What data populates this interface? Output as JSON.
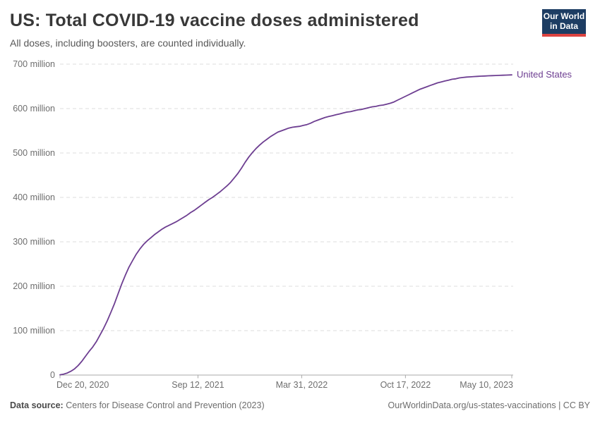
{
  "header": {
    "title": "US: Total COVID-19 vaccine doses administered",
    "subtitle": "All doses, including boosters, are counted individually.",
    "logo": {
      "line1": "Our World",
      "line2": "in Data",
      "bg": "#1d3d63",
      "accent": "#dc4340"
    }
  },
  "footer": {
    "source_label": "Data source:",
    "source_text": "Centers for Disease Control and Prevention (2023)",
    "link_text": "OurWorldinData.org/us-states-vaccinations | CC BY"
  },
  "chart_data": {
    "type": "line",
    "title": "US: Total COVID-19 vaccine doses administered",
    "xlabel": "",
    "ylabel": "",
    "unit": "doses (millions)",
    "grid": "horizontal-dashed",
    "legend_position": "end-of-line",
    "ylim": [
      0,
      700
    ],
    "x_range": [
      "2020-12-20",
      "2023-05-10"
    ],
    "y_ticks": [
      {
        "value": 0,
        "label": "0"
      },
      {
        "value": 100,
        "label": "100 million"
      },
      {
        "value": 200,
        "label": "200 million"
      },
      {
        "value": 300,
        "label": "300 million"
      },
      {
        "value": 400,
        "label": "400 million"
      },
      {
        "value": 500,
        "label": "500 million"
      },
      {
        "value": 600,
        "label": "600 million"
      },
      {
        "value": 700,
        "label": "700 million"
      }
    ],
    "x_ticks": [
      {
        "date": "2020-12-20",
        "label": "Dec 20, 2020",
        "align": "first"
      },
      {
        "date": "2021-09-12",
        "label": "Sep 12, 2021",
        "align": "center"
      },
      {
        "date": "2022-03-31",
        "label": "Mar 31, 2022",
        "align": "center"
      },
      {
        "date": "2022-10-17",
        "label": "Oct 17, 2022",
        "align": "center"
      },
      {
        "date": "2023-05-10",
        "label": "May 10, 2023",
        "align": "last"
      }
    ],
    "series": [
      {
        "name": "United States",
        "color": "#6d3e91",
        "points": [
          [
            "2020-12-20",
            0.6
          ],
          [
            "2020-12-27",
            2.1
          ],
          [
            "2021-01-03",
            4.6
          ],
          [
            "2021-01-10",
            8.5
          ],
          [
            "2021-01-17",
            14
          ],
          [
            "2021-01-24",
            21.5
          ],
          [
            "2021-01-31",
            31
          ],
          [
            "2021-02-07",
            42
          ],
          [
            "2021-02-14",
            53
          ],
          [
            "2021-02-21",
            63
          ],
          [
            "2021-02-28",
            75
          ],
          [
            "2021-03-07",
            90
          ],
          [
            "2021-03-14",
            105
          ],
          [
            "2021-03-21",
            122
          ],
          [
            "2021-03-28",
            141
          ],
          [
            "2021-04-04",
            161
          ],
          [
            "2021-04-11",
            183
          ],
          [
            "2021-04-18",
            205
          ],
          [
            "2021-04-25",
            225
          ],
          [
            "2021-05-02",
            243
          ],
          [
            "2021-05-09",
            258
          ],
          [
            "2021-05-16",
            272
          ],
          [
            "2021-05-23",
            284
          ],
          [
            "2021-05-30",
            294
          ],
          [
            "2021-06-06",
            302
          ],
          [
            "2021-06-13",
            309
          ],
          [
            "2021-06-20",
            316
          ],
          [
            "2021-06-27",
            322
          ],
          [
            "2021-07-04",
            328
          ],
          [
            "2021-07-11",
            333
          ],
          [
            "2021-07-18",
            337
          ],
          [
            "2021-07-25",
            341
          ],
          [
            "2021-08-01",
            345
          ],
          [
            "2021-08-08",
            350
          ],
          [
            "2021-08-15",
            355
          ],
          [
            "2021-08-22",
            360
          ],
          [
            "2021-08-29",
            366
          ],
          [
            "2021-09-05",
            371
          ],
          [
            "2021-09-12",
            377
          ],
          [
            "2021-09-19",
            383
          ],
          [
            "2021-09-26",
            389
          ],
          [
            "2021-10-03",
            395
          ],
          [
            "2021-10-10",
            400
          ],
          [
            "2021-10-17",
            406
          ],
          [
            "2021-10-24",
            412
          ],
          [
            "2021-10-31",
            419
          ],
          [
            "2021-11-07",
            426
          ],
          [
            "2021-11-14",
            434
          ],
          [
            "2021-11-21",
            444
          ],
          [
            "2021-11-28",
            454
          ],
          [
            "2021-12-05",
            466
          ],
          [
            "2021-12-12",
            479
          ],
          [
            "2021-12-19",
            491
          ],
          [
            "2021-12-26",
            501
          ],
          [
            "2022-01-02",
            510
          ],
          [
            "2022-01-09",
            518
          ],
          [
            "2022-01-16",
            525
          ],
          [
            "2022-01-23",
            531
          ],
          [
            "2022-01-30",
            537
          ],
          [
            "2022-02-06",
            542
          ],
          [
            "2022-02-13",
            547
          ],
          [
            "2022-02-20",
            550
          ],
          [
            "2022-02-27",
            553
          ],
          [
            "2022-03-06",
            556
          ],
          [
            "2022-03-13",
            558
          ],
          [
            "2022-03-20",
            559
          ],
          [
            "2022-03-27",
            560
          ],
          [
            "2022-04-03",
            562
          ],
          [
            "2022-04-10",
            564
          ],
          [
            "2022-04-17",
            567
          ],
          [
            "2022-04-24",
            571
          ],
          [
            "2022-05-01",
            574
          ],
          [
            "2022-05-08",
            577
          ],
          [
            "2022-05-15",
            580
          ],
          [
            "2022-05-22",
            582
          ],
          [
            "2022-05-29",
            584
          ],
          [
            "2022-06-05",
            586
          ],
          [
            "2022-06-12",
            588
          ],
          [
            "2022-06-19",
            590
          ],
          [
            "2022-06-26",
            592
          ],
          [
            "2022-07-03",
            593
          ],
          [
            "2022-07-10",
            595
          ],
          [
            "2022-07-17",
            597
          ],
          [
            "2022-07-24",
            598
          ],
          [
            "2022-07-31",
            600
          ],
          [
            "2022-08-07",
            602
          ],
          [
            "2022-08-14",
            604
          ],
          [
            "2022-08-21",
            605
          ],
          [
            "2022-08-28",
            607
          ],
          [
            "2022-09-04",
            608
          ],
          [
            "2022-09-11",
            610
          ],
          [
            "2022-09-18",
            612
          ],
          [
            "2022-09-25",
            615
          ],
          [
            "2022-10-02",
            619
          ],
          [
            "2022-10-09",
            623
          ],
          [
            "2022-10-16",
            627
          ],
          [
            "2022-10-23",
            631
          ],
          [
            "2022-10-30",
            635
          ],
          [
            "2022-11-06",
            639
          ],
          [
            "2022-11-13",
            643
          ],
          [
            "2022-11-20",
            646
          ],
          [
            "2022-11-27",
            649
          ],
          [
            "2022-12-04",
            652
          ],
          [
            "2022-12-11",
            655
          ],
          [
            "2022-12-18",
            658
          ],
          [
            "2022-12-25",
            660
          ],
          [
            "2023-01-01",
            662
          ],
          [
            "2023-01-08",
            664
          ],
          [
            "2023-01-15",
            666
          ],
          [
            "2023-01-22",
            667
          ],
          [
            "2023-01-29",
            669
          ],
          [
            "2023-02-05",
            670
          ],
          [
            "2023-02-12",
            671
          ],
          [
            "2023-02-19",
            671.5
          ],
          [
            "2023-02-26",
            672
          ],
          [
            "2023-03-05",
            672.5
          ],
          [
            "2023-03-12",
            673
          ],
          [
            "2023-03-19",
            673.4
          ],
          [
            "2023-03-26",
            673.8
          ],
          [
            "2023-04-02",
            674.2
          ],
          [
            "2023-04-09",
            674.5
          ],
          [
            "2023-04-16",
            674.8
          ],
          [
            "2023-04-23",
            675.1
          ],
          [
            "2023-04-30",
            675.4
          ],
          [
            "2023-05-10",
            675.8
          ]
        ]
      }
    ]
  }
}
